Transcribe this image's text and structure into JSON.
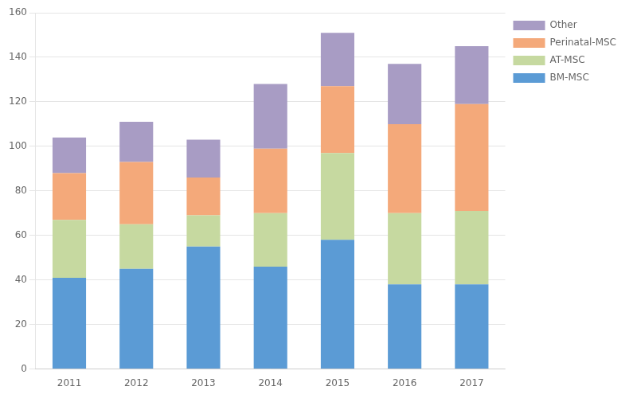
{
  "chart_data": {
    "type": "bar",
    "stacked": true,
    "categories": [
      "2011",
      "2012",
      "2013",
      "2014",
      "2015",
      "2016",
      "2017"
    ],
    "series": [
      {
        "name": "BM-MSC",
        "color": "#5B9BD5",
        "values": [
          41,
          45,
          55,
          46,
          58,
          38,
          38
        ]
      },
      {
        "name": "AT-MSC",
        "color": "#C6D9A0",
        "values": [
          26,
          20,
          14,
          24,
          39,
          32,
          33
        ]
      },
      {
        "name": "Perinatal-MSC",
        "color": "#F4A97A",
        "values": [
          21,
          28,
          17,
          29,
          30,
          40,
          48
        ]
      },
      {
        "name": "Other",
        "color": "#A89CC4",
        "values": [
          16,
          18,
          17,
          29,
          24,
          27,
          26
        ]
      }
    ],
    "ylim": [
      0,
      160
    ],
    "yticks": [
      0,
      20,
      40,
      60,
      80,
      100,
      120,
      140,
      160
    ],
    "grid": true,
    "legend": "right"
  }
}
